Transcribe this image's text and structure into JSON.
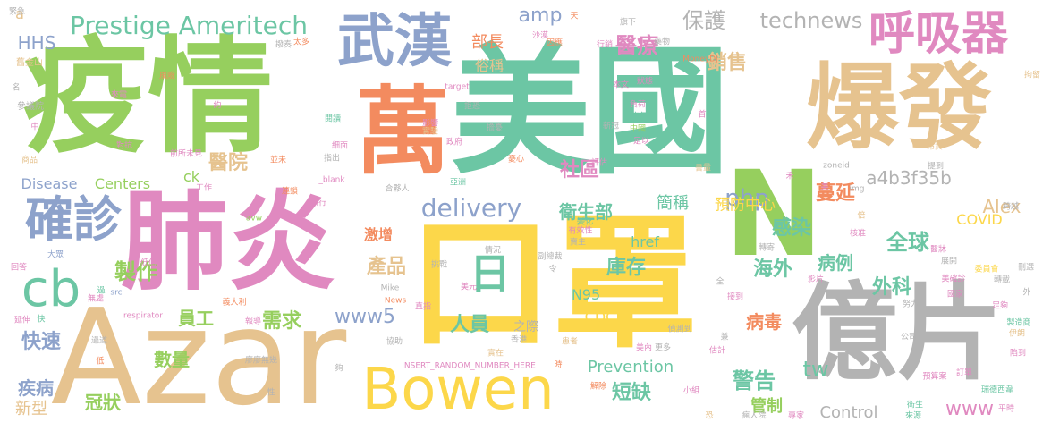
{
  "colors": {
    "background": "#ffffff",
    "green": "#96cf5e",
    "teal": "#6cc6a4",
    "pink": "#e089c0",
    "blue": "#8da2cb",
    "orange": "#f38b5f",
    "yellow": "#fcd74a",
    "tan": "#e6c38f",
    "gray": "#b3b3b3"
  },
  "words": [
    {
      "text": "美國",
      "color": "teal"
    },
    {
      "text": "疫情",
      "color": "green"
    },
    {
      "text": "Azar",
      "color": "tan"
    },
    {
      "text": "口罩",
      "color": "yellow"
    },
    {
      "text": "億片",
      "color": "gray"
    },
    {
      "text": "肺炎",
      "color": "pink"
    },
    {
      "text": "萬",
      "color": "orange"
    },
    {
      "text": "爆發",
      "color": "tan"
    },
    {
      "text": "N",
      "color": "green"
    },
    {
      "text": "Bowen",
      "color": "yellow"
    },
    {
      "text": "武漢",
      "color": "blue"
    },
    {
      "text": "呼吸器",
      "color": "pink"
    },
    {
      "text": "確診",
      "color": "blue"
    },
    {
      "text": "cb",
      "color": "teal"
    },
    {
      "text": "Prestige Ameritech",
      "color": "teal"
    },
    {
      "text": "日",
      "color": "teal"
    },
    {
      "text": "delivery",
      "color": "blue"
    },
    {
      "text": "醫療",
      "color": "pink"
    },
    {
      "text": "保護",
      "color": "gray"
    },
    {
      "text": "technews",
      "color": "gray"
    },
    {
      "text": "銷售",
      "color": "tan"
    },
    {
      "text": "php",
      "color": "blue"
    },
    {
      "text": "醫院",
      "color": "tan"
    },
    {
      "text": "a4b3f35b",
      "color": "gray"
    },
    {
      "text": "社區",
      "color": "pink"
    },
    {
      "text": "蔓延",
      "color": "orange"
    },
    {
      "text": "Alex",
      "color": "tan"
    },
    {
      "text": "衛生部",
      "color": "teal"
    },
    {
      "text": "簡稱",
      "color": "teal"
    },
    {
      "text": "預防中心",
      "color": "yellow"
    },
    {
      "text": "感染",
      "color": "teal"
    },
    {
      "text": "海外",
      "color": "teal"
    },
    {
      "text": "全球",
      "color": "teal"
    },
    {
      "text": "病例",
      "color": "teal"
    },
    {
      "text": "外科",
      "color": "teal"
    },
    {
      "text": "庫存",
      "color": "teal"
    },
    {
      "text": "產品",
      "color": "tan"
    },
    {
      "text": "製作",
      "color": "green"
    },
    {
      "text": "人員",
      "color": "teal"
    },
    {
      "text": "www5",
      "color": "blue"
    },
    {
      "text": "需求",
      "color": "green"
    },
    {
      "text": "快速",
      "color": "blue"
    },
    {
      "text": "員工",
      "color": "green"
    },
    {
      "text": "數量",
      "color": "green"
    },
    {
      "text": "疾病",
      "color": "blue"
    },
    {
      "text": "新型",
      "color": "tan"
    },
    {
      "text": "冠狀",
      "color": "green"
    },
    {
      "text": "Prevention",
      "color": "teal"
    },
    {
      "text": "短缺",
      "color": "teal"
    },
    {
      "text": "管制",
      "color": "green"
    },
    {
      "text": "警告",
      "color": "teal"
    },
    {
      "text": "病毒",
      "color": "orange"
    },
    {
      "text": "Control",
      "color": "gray"
    },
    {
      "text": "COVID",
      "color": "yellow"
    },
    {
      "text": "CDC",
      "color": "yellow"
    },
    {
      "text": "N95",
      "color": "teal"
    },
    {
      "text": "tw",
      "color": "teal"
    },
    {
      "text": "www",
      "color": "pink"
    },
    {
      "text": "激增",
      "color": "orange"
    },
    {
      "text": "href",
      "color": "teal"
    },
    {
      "text": "amp",
      "color": "blue"
    },
    {
      "text": "部長",
      "color": "orange"
    },
    {
      "text": "俗稱",
      "color": "tan"
    },
    {
      "text": "HHS",
      "color": "blue"
    },
    {
      "text": "Disease",
      "color": "blue"
    },
    {
      "text": "Centers",
      "color": "green"
    },
    {
      "text": "ck",
      "color": "green"
    },
    {
      "text": "之際",
      "color": "gray"
    },
    {
      "text": "a",
      "color": "tan"
    },
    {
      "text": "舊金山",
      "color": "tan"
    },
    {
      "text": "參議院",
      "color": "gray"
    },
    {
      "text": "來電",
      "color": "pink"
    },
    {
      "text": "風險",
      "color": "orange"
    },
    {
      "text": "撥奏",
      "color": "gray"
    },
    {
      "text": "太多",
      "color": "orange"
    },
    {
      "text": "因應",
      "color": "orange"
    },
    {
      "text": "行銷",
      "color": "pink"
    },
    {
      "text": "藥物",
      "color": "gray"
    },
    {
      "text": "旗下",
      "color": "gray"
    },
    {
      "text": "MoneyDJ",
      "color": "orange"
    },
    {
      "text": "target",
      "color": "pink"
    },
    {
      "text": "本文",
      "color": "pink"
    },
    {
      "text": "狀態",
      "color": "pink"
    },
    {
      "text": "負荷",
      "color": "pink"
    },
    {
      "text": "空氣",
      "color": "teal"
    },
    {
      "text": "中國",
      "color": "green"
    },
    {
      "text": "足以",
      "color": "pink"
    },
    {
      "text": "新冠",
      "color": "gray"
    },
    {
      "text": "評估",
      "color": "pink"
    },
    {
      "text": "影響",
      "color": "pink"
    },
    {
      "text": "實驗",
      "color": "tan"
    },
    {
      "text": "政府",
      "color": "pink"
    },
    {
      "text": "擔憂",
      "color": "gray"
    },
    {
      "text": "憂心",
      "color": "orange"
    },
    {
      "text": "新聞",
      "color": "teal"
    },
    {
      "text": "亞洲",
      "color": "teal"
    },
    {
      "text": "_blank",
      "color": "pink"
    },
    {
      "text": "合夥人",
      "color": "gray"
    },
    {
      "text": "指出",
      "color": "gray"
    },
    {
      "text": "並未",
      "color": "orange"
    },
    {
      "text": "前所未見",
      "color": "pink"
    },
    {
      "text": "對抗",
      "color": "pink"
    },
    {
      "text": "商品",
      "color": "tan"
    },
    {
      "text": "工作",
      "color": "pink"
    },
    {
      "text": "執行",
      "color": "pink"
    },
    {
      "text": "連鎖",
      "color": "orange"
    },
    {
      "text": "avw",
      "color": "green"
    },
    {
      "text": "人數",
      "color": "pink"
    },
    {
      "text": "低估",
      "color": "pink"
    },
    {
      "text": "回答",
      "color": "pink"
    },
    {
      "text": "延伸",
      "color": "pink"
    },
    {
      "text": "無處",
      "color": "pink"
    },
    {
      "text": "大眾",
      "color": "blue"
    },
    {
      "text": "src",
      "color": "blue"
    },
    {
      "text": "respirator",
      "color": "pink"
    },
    {
      "text": "義大利",
      "color": "orange"
    },
    {
      "text": "報導",
      "color": "pink"
    },
    {
      "text": "過道",
      "color": "gray"
    },
    {
      "text": "低",
      "color": "orange"
    },
    {
      "text": "廖廖無幾",
      "color": "gray"
    },
    {
      "text": "性",
      "color": "gray"
    },
    {
      "text": "夠",
      "color": "gray"
    },
    {
      "text": "協助",
      "color": "gray"
    },
    {
      "text": "INSERT_RANDOM_NUMBER_HERE",
      "color": "pink"
    },
    {
      "text": "實在",
      "color": "tan"
    },
    {
      "text": "香港",
      "color": "gray"
    },
    {
      "text": "直指",
      "color": "pink"
    },
    {
      "text": "美元",
      "color": "pink"
    },
    {
      "text": "Mike",
      "color": "gray"
    },
    {
      "text": "News",
      "color": "orange"
    },
    {
      "text": "挑戰",
      "color": "gray"
    },
    {
      "text": "副總裁",
      "color": "gray"
    },
    {
      "text": "情況",
      "color": "gray"
    },
    {
      "text": "令",
      "color": "gray"
    },
    {
      "text": "賣主",
      "color": "gray"
    },
    {
      "text": "有效性",
      "color": "pink"
    },
    {
      "text": "變化",
      "color": "teal"
    },
    {
      "text": "患者",
      "color": "tan"
    },
    {
      "text": "解除",
      "color": "orange"
    },
    {
      "text": "時",
      "color": "orange"
    },
    {
      "text": "美內",
      "color": "pink"
    },
    {
      "text": "更多",
      "color": "gray"
    },
    {
      "text": "估計",
      "color": "pink"
    },
    {
      "text": "偵測到",
      "color": "gray"
    },
    {
      "text": "接到",
      "color": "pink"
    },
    {
      "text": "兼",
      "color": "gray"
    },
    {
      "text": "小組",
      "color": "pink"
    },
    {
      "text": "恐",
      "color": "tan"
    },
    {
      "text": "瘋人院",
      "color": "gray"
    },
    {
      "text": "專家",
      "color": "pink"
    },
    {
      "text": "衛生",
      "color": "teal"
    },
    {
      "text": "來源",
      "color": "teal"
    },
    {
      "text": "平時",
      "color": "pink"
    },
    {
      "text": "努力",
      "color": "gray"
    },
    {
      "text": "公司",
      "color": "gray"
    },
    {
      "text": "伊朗",
      "color": "tan"
    },
    {
      "text": "預算案",
      "color": "pink"
    },
    {
      "text": "訂單",
      "color": "pink"
    },
    {
      "text": "瑞德西韋",
      "color": "teal"
    },
    {
      "text": "製造商",
      "color": "teal"
    },
    {
      "text": "陷到",
      "color": "pink"
    },
    {
      "text": "足夠",
      "color": "pink"
    },
    {
      "text": "外",
      "color": "gray"
    },
    {
      "text": "轉載",
      "color": "gray"
    },
    {
      "text": "國家",
      "color": "pink"
    },
    {
      "text": "美確診",
      "color": "pink"
    },
    {
      "text": "委員會",
      "color": "yellow"
    },
    {
      "text": "影片",
      "color": "pink"
    },
    {
      "text": "展開",
      "color": "gray"
    },
    {
      "text": "醫牀",
      "color": "pink"
    },
    {
      "text": "轉寄",
      "color": "gray"
    },
    {
      "text": "刪選",
      "color": "gray"
    },
    {
      "text": "核准",
      "color": "pink"
    },
    {
      "text": "跨越",
      "color": "gray"
    },
    {
      "text": "倍",
      "color": "tan"
    },
    {
      "text": "img",
      "color": "gray"
    },
    {
      "text": "zoneid",
      "color": "gray"
    },
    {
      "text": "提到",
      "color": "gray"
    },
    {
      "text": "昂貴",
      "color": "tan"
    },
    {
      "text": "書量",
      "color": "tan"
    },
    {
      "text": "禾",
      "color": "pink"
    },
    {
      "text": "首",
      "color": "pink"
    },
    {
      "text": "拘留",
      "color": "tan"
    },
    {
      "text": "美",
      "color": "pink"
    },
    {
      "text": "拒恐",
      "color": "gray"
    },
    {
      "text": "天",
      "color": "orange"
    },
    {
      "text": "沙漠",
      "color": "pink"
    },
    {
      "text": "全",
      "color": "gray"
    },
    {
      "text": "名",
      "color": "gray"
    },
    {
      "text": "中",
      "color": "pink"
    },
    {
      "text": "緊急",
      "color": "gray"
    },
    {
      "text": "快",
      "color": "teal"
    },
    {
      "text": "過",
      "color": "teal"
    },
    {
      "text": "約",
      "color": "pink"
    },
    {
      "text": "閱讀",
      "color": "teal"
    },
    {
      "text": "細面",
      "color": "pink"
    }
  ]
}
